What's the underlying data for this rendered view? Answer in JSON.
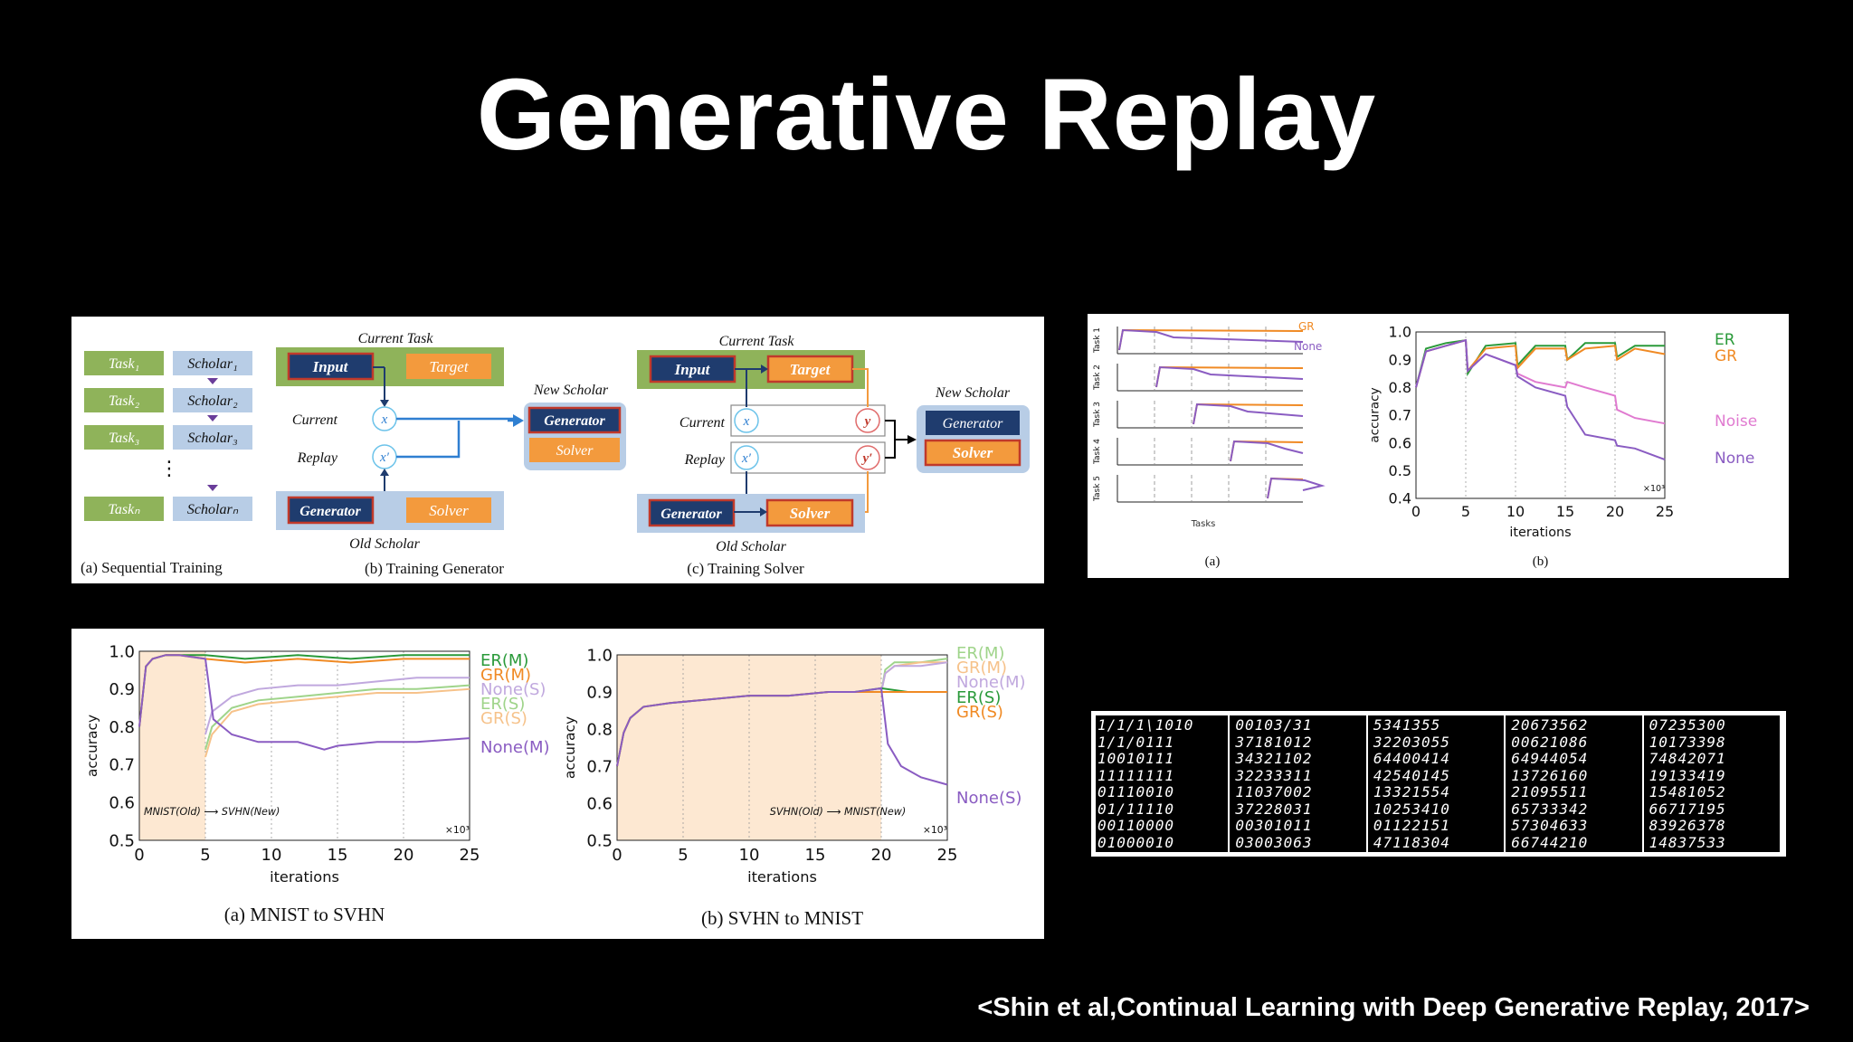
{
  "slide": {
    "title": "Generative Replay",
    "citation": "<Shin et al,Continual Learning with Deep Generative Replay, 2017>"
  },
  "diagram": {
    "sequential": {
      "tasks": [
        "Task₁",
        "Task₂",
        "Task₃",
        "Taskₙ"
      ],
      "scholars": [
        "Scholar₁",
        "Scholar₂",
        "Scholar₃",
        "Scholarₙ"
      ],
      "ellipsis": "⋮",
      "caption": "(a) Sequential Training"
    },
    "training_generator": {
      "current_task": "Current Task",
      "input": "Input",
      "target": "Target",
      "current": "Current",
      "replay": "Replay",
      "x": "x",
      "x_prime": "x′",
      "new_scholar": "New Scholar",
      "generator": "Generator",
      "solver": "Solver",
      "old_generator": "Generator",
      "old_solver": "Solver",
      "old_scholar": "Old Scholar",
      "caption": "(b) Training Generator"
    },
    "training_solver": {
      "current_task": "Current Task",
      "input": "Input",
      "target": "Target",
      "current": "Current",
      "replay": "Replay",
      "x": "x",
      "x_prime": "x′",
      "y": "y",
      "y_prime": "y′",
      "new_scholar": "New Scholar",
      "generator": "Generator",
      "solver": "Solver",
      "old_generator": "Generator",
      "old_solver": "Solver",
      "old_scholar": "Old Scholar",
      "caption": "(c) Training Solver"
    },
    "colors": {
      "green": "#8fb35a",
      "blue_box": "#b8cde6",
      "navy": "#1f3c6e",
      "orange": "#f39a3d",
      "red_border": "#c0392b",
      "arrow_blue": "#2f7fd1",
      "arrow_orange": "#f39a3d"
    }
  },
  "chart_data": [
    {
      "type": "line",
      "title": "",
      "ylabel": "",
      "rows": [
        "Task 1",
        "Task 2",
        "Task 3",
        "Task 4",
        "Task 5"
      ],
      "xlabel": "Tasks",
      "caption": "(a)",
      "legend": [
        "GR",
        "None"
      ],
      "colors": [
        "#f08a24",
        "#8a5cc2"
      ]
    },
    {
      "type": "line",
      "xlabel": "iterations",
      "ylabel": "accuracy",
      "x_multiplier": "×10³",
      "xticks": [
        0,
        5,
        10,
        15,
        20,
        25
      ],
      "yticks": [
        0.4,
        0.5,
        0.6,
        0.7,
        0.8,
        0.9,
        1.0
      ],
      "xlim": [
        0,
        25
      ],
      "ylim": [
        0.4,
        1.0
      ],
      "caption": "(b)",
      "series": [
        {
          "name": "ER",
          "color": "#2a9a3a",
          "x": [
            0,
            1,
            3,
            5,
            5.2,
            7,
            10,
            10.2,
            12,
            15,
            15.2,
            17,
            20,
            20.2,
            22,
            25
          ],
          "y": [
            0.8,
            0.94,
            0.96,
            0.97,
            0.85,
            0.95,
            0.96,
            0.88,
            0.95,
            0.95,
            0.9,
            0.96,
            0.96,
            0.91,
            0.95,
            0.95
          ]
        },
        {
          "name": "GR",
          "color": "#f08a24",
          "x": [
            0,
            1,
            3,
            5,
            5.2,
            7,
            10,
            10.2,
            12,
            15,
            15.2,
            17,
            20,
            20.2,
            22,
            25
          ],
          "y": [
            0.8,
            0.93,
            0.95,
            0.97,
            0.86,
            0.94,
            0.95,
            0.87,
            0.94,
            0.94,
            0.9,
            0.94,
            0.95,
            0.9,
            0.94,
            0.92
          ]
        },
        {
          "name": "Noise",
          "color": "#e07ad0",
          "x": [
            0,
            1,
            3,
            5,
            5.2,
            7,
            10,
            10.2,
            12,
            15,
            15.2,
            17,
            20,
            20.2,
            22,
            25
          ],
          "y": [
            0.8,
            0.93,
            0.95,
            0.97,
            0.86,
            0.92,
            0.88,
            0.85,
            0.82,
            0.8,
            0.82,
            0.8,
            0.77,
            0.72,
            0.69,
            0.67
          ]
        },
        {
          "name": "None",
          "color": "#8a5cc2",
          "x": [
            0,
            1,
            3,
            5,
            5.2,
            7,
            10,
            10.2,
            12,
            15,
            15.2,
            17,
            20,
            20.2,
            22,
            25
          ],
          "y": [
            0.8,
            0.93,
            0.95,
            0.97,
            0.86,
            0.92,
            0.88,
            0.84,
            0.8,
            0.77,
            0.73,
            0.63,
            0.61,
            0.59,
            0.58,
            0.54
          ]
        }
      ]
    },
    {
      "type": "line",
      "xlabel": "iterations",
      "ylabel": "accuracy",
      "x_multiplier": "×10³",
      "xticks": [
        0,
        5,
        10,
        15,
        20,
        25
      ],
      "yticks": [
        0.5,
        0.6,
        0.7,
        0.8,
        0.9,
        1.0
      ],
      "xlim": [
        0,
        25
      ],
      "ylim": [
        0.5,
        1.0
      ],
      "shaded_x": [
        0,
        5
      ],
      "annotation": "MNIST(Old) ⟶ SVHN(New)",
      "caption": "(a) MNIST to SVHN",
      "series": [
        {
          "name": "ER(M)",
          "color": "#2a9a3a",
          "x": [
            0,
            0.5,
            1,
            2,
            3,
            5,
            8,
            12,
            16,
            20,
            25
          ],
          "y": [
            0.8,
            0.96,
            0.98,
            0.99,
            0.99,
            0.99,
            0.98,
            0.99,
            0.98,
            0.99,
            0.99
          ]
        },
        {
          "name": "GR(M)",
          "color": "#f08a24",
          "x": [
            0,
            0.5,
            1,
            2,
            3,
            5,
            8,
            12,
            16,
            20,
            25
          ],
          "y": [
            0.8,
            0.96,
            0.98,
            0.99,
            0.99,
            0.98,
            0.97,
            0.98,
            0.97,
            0.98,
            0.98
          ]
        },
        {
          "name": "None(S)",
          "color": "#c0a8de",
          "x": [
            5,
            5.5,
            7,
            9,
            12,
            15,
            18,
            21,
            25
          ],
          "y": [
            0.78,
            0.84,
            0.88,
            0.9,
            0.91,
            0.91,
            0.92,
            0.93,
            0.93
          ]
        },
        {
          "name": "ER(S)",
          "color": "#9fd48a",
          "x": [
            5,
            5.5,
            7,
            9,
            12,
            15,
            18,
            21,
            25
          ],
          "y": [
            0.74,
            0.8,
            0.85,
            0.87,
            0.88,
            0.89,
            0.9,
            0.9,
            0.91
          ]
        },
        {
          "name": "GR(S)",
          "color": "#f6c28a",
          "x": [
            5,
            5.5,
            7,
            9,
            12,
            15,
            18,
            21,
            25
          ],
          "y": [
            0.72,
            0.78,
            0.84,
            0.86,
            0.87,
            0.88,
            0.89,
            0.89,
            0.9
          ]
        },
        {
          "name": "None(M)",
          "color": "#8a5cc2",
          "x": [
            0,
            0.5,
            1,
            2,
            3,
            5,
            5.6,
            7,
            9,
            12,
            14,
            15,
            18,
            21,
            25
          ],
          "y": [
            0.8,
            0.96,
            0.98,
            0.99,
            0.99,
            0.98,
            0.82,
            0.78,
            0.76,
            0.76,
            0.74,
            0.75,
            0.76,
            0.76,
            0.77
          ]
        }
      ]
    },
    {
      "type": "line",
      "xlabel": "iterations",
      "ylabel": "accuracy",
      "x_multiplier": "×10³",
      "xticks": [
        0,
        5,
        10,
        15,
        20,
        25
      ],
      "yticks": [
        0.5,
        0.6,
        0.7,
        0.8,
        0.9,
        1.0
      ],
      "xlim": [
        0,
        25
      ],
      "ylim": [
        0.5,
        1.0
      ],
      "shaded_x": [
        0,
        20
      ],
      "annotation": "SVHN(Old) ⟶ MNIST(New)",
      "caption": "(b) SVHN to MNIST",
      "series": [
        {
          "name": "ER(M)",
          "color": "#9fd48a",
          "x": [
            20,
            20.3,
            21,
            23,
            25
          ],
          "y": [
            0.9,
            0.96,
            0.98,
            0.98,
            0.99
          ]
        },
        {
          "name": "GR(M)",
          "color": "#f6c28a",
          "x": [
            20,
            20.3,
            21,
            23,
            25
          ],
          "y": [
            0.9,
            0.95,
            0.97,
            0.98,
            0.98
          ]
        },
        {
          "name": "None(M)",
          "color": "#c0a8de",
          "x": [
            20,
            20.3,
            21,
            23,
            25
          ],
          "y": [
            0.9,
            0.95,
            0.97,
            0.97,
            0.98
          ]
        },
        {
          "name": "ER(S)",
          "color": "#2a9a3a",
          "x": [
            0,
            0.5,
            1,
            2,
            4,
            7,
            10,
            13,
            16,
            18,
            20,
            22,
            25
          ],
          "y": [
            0.7,
            0.79,
            0.83,
            0.86,
            0.87,
            0.88,
            0.89,
            0.89,
            0.9,
            0.9,
            0.91,
            0.9,
            0.9
          ]
        },
        {
          "name": "GR(S)",
          "color": "#f08a24",
          "x": [
            0,
            0.5,
            1,
            2,
            4,
            7,
            10,
            13,
            16,
            18,
            20,
            22,
            25
          ],
          "y": [
            0.7,
            0.79,
            0.83,
            0.86,
            0.87,
            0.88,
            0.89,
            0.89,
            0.9,
            0.9,
            0.9,
            0.9,
            0.9
          ]
        },
        {
          "name": "None(S)",
          "color": "#8a5cc2",
          "x": [
            0,
            0.5,
            1,
            2,
            4,
            7,
            10,
            13,
            16,
            18,
            20,
            20.5,
            21.5,
            23,
            25
          ],
          "y": [
            0.7,
            0.79,
            0.83,
            0.86,
            0.87,
            0.88,
            0.89,
            0.89,
            0.9,
            0.9,
            0.91,
            0.76,
            0.7,
            0.67,
            0.65
          ]
        }
      ]
    }
  ],
  "digit_samples": {
    "rows": [
      [
        "1/1/1\\1010",
        "00103/31",
        "5341355",
        "20673562",
        "07235300"
      ],
      [
        "1/1/0111",
        "37181012",
        "32203055",
        "00621086",
        "10173398"
      ],
      [
        "10010111",
        "34321102",
        "64400414",
        "64944054",
        "74842071"
      ],
      [
        "11111111",
        "32233311",
        "42540145",
        "13726160",
        "19133419"
      ],
      [
        "01110010",
        "11037002",
        "13321554",
        "21095511",
        "15481052"
      ],
      [
        "01/11110",
        "37228031",
        "10253410",
        "65733342",
        "66717195"
      ],
      [
        "00110000",
        "00301011",
        "01122151",
        "57304633",
        "83926378"
      ],
      [
        "01000010",
        "03003063",
        "47118304",
        "66744210",
        "14837533"
      ]
    ]
  }
}
